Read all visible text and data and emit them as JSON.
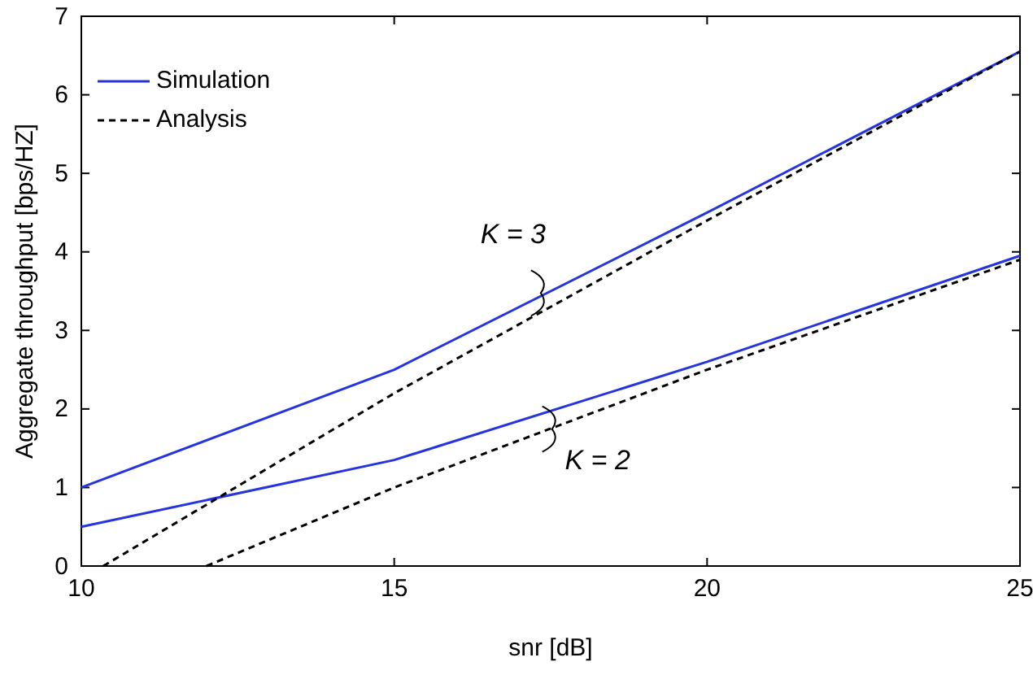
{
  "chart_data": {
    "type": "line",
    "xlabel": "snr [dB]",
    "ylabel": "Aggregate throughput [bps/HZ]",
    "xlim": [
      10,
      25
    ],
    "xticks": [
      10,
      15,
      20,
      25
    ],
    "ylim": [
      0,
      7
    ],
    "yticks": [
      0,
      1,
      2,
      3,
      4,
      5,
      6,
      7
    ],
    "legend": "top left",
    "grid": false,
    "series": [
      {
        "name": "Simulation",
        "color": "#2434e0",
        "line_style": "solid",
        "x": [
          10,
          15,
          20,
          25
        ],
        "values": [
          1.0,
          2.5,
          4.5,
          6.55
        ]
      },
      {
        "color": "#2434e0",
        "line_style": "solid",
        "x": [
          10,
          15,
          20,
          25
        ],
        "values": [
          0.5,
          1.35,
          2.6,
          3.95
        ]
      },
      {
        "name": "Analysis",
        "color": "#000000",
        "line_style": "dashed",
        "x": [
          10.35,
          15,
          20,
          25
        ],
        "values": [
          0,
          2.2,
          4.4,
          6.55
        ]
      },
      {
        "color": "#000000",
        "line_style": "dashed",
        "x": [
          12,
          15,
          20,
          25
        ],
        "values": [
          0,
          1.0,
          2.5,
          3.9
        ]
      }
    ],
    "annotations": [
      "K = 3",
      "K = 2"
    ]
  }
}
